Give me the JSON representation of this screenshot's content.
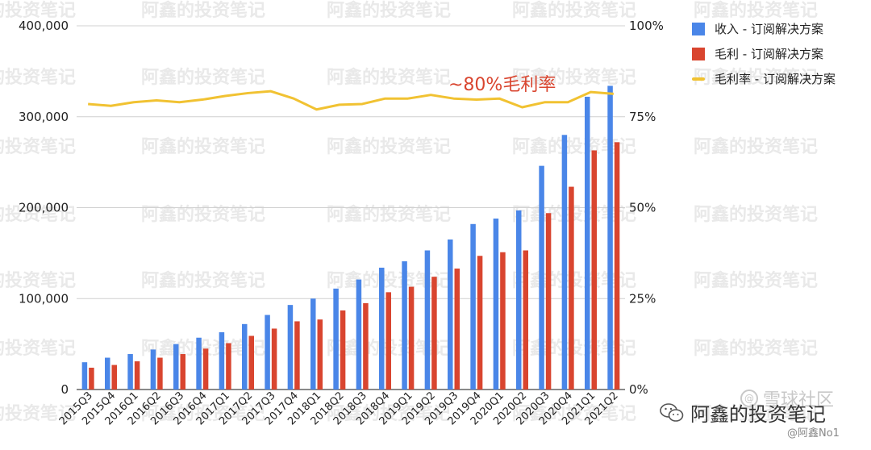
{
  "chart_data": {
    "type": "bar",
    "categories": [
      "2015Q3",
      "2015Q4",
      "2016Q1",
      "2016Q2",
      "2016Q3",
      "2016Q4",
      "2017Q1",
      "2017Q2",
      "2017Q3",
      "2017Q4",
      "2018Q1",
      "2018Q2",
      "2018Q3",
      "2018Q4",
      "2019Q1",
      "2019Q2",
      "2019Q3",
      "2019Q4",
      "2020Q1",
      "2020Q2",
      "2020Q3",
      "2020Q4",
      "2021Q1",
      "2021Q2"
    ],
    "series": [
      {
        "name": "收入 - 订阅解决方案",
        "kind": "bar",
        "axis": "left",
        "color": "#4a86e8",
        "values": [
          30000,
          35000,
          39000,
          44000,
          50000,
          57000,
          63000,
          72000,
          82000,
          93000,
          100000,
          111000,
          121000,
          134000,
          141000,
          153000,
          165000,
          182000,
          188000,
          197000,
          246000,
          280000,
          322000,
          334000
        ]
      },
      {
        "name": "毛利 - 订阅解决方案",
        "kind": "bar",
        "axis": "left",
        "color": "#d9452f",
        "values": [
          24000,
          27000,
          31000,
          35000,
          39000,
          45000,
          51000,
          59000,
          67000,
          75000,
          77000,
          87000,
          95000,
          107000,
          113000,
          124000,
          133000,
          147000,
          151000,
          153000,
          194000,
          223000,
          263000,
          272000
        ]
      },
      {
        "name": "毛利率 - 订阅解决方案",
        "kind": "line",
        "axis": "right",
        "color": "#f1c232",
        "values": [
          0.785,
          0.78,
          0.79,
          0.795,
          0.79,
          0.797,
          0.807,
          0.815,
          0.82,
          0.8,
          0.77,
          0.783,
          0.785,
          0.8,
          0.8,
          0.81,
          0.8,
          0.797,
          0.8,
          0.776,
          0.79,
          0.79,
          0.818,
          0.813
        ]
      }
    ],
    "left_axis": {
      "ylim": [
        0,
        400000
      ],
      "ticks": [
        "0",
        "100,000",
        "200,000",
        "300,000",
        "400,000"
      ]
    },
    "right_axis": {
      "ylim": [
        0,
        1
      ],
      "ticks": [
        "0%",
        "25%",
        "50%",
        "75%",
        "100%"
      ]
    },
    "grid": true,
    "legend_position": "top-right",
    "annotation": "~80%毛利率"
  },
  "watermark": "阿鑫的投资笔记",
  "footer": {
    "account": "阿鑫的投资笔记",
    "site": "雪球社区",
    "handle": "@阿鑫No1",
    "wechat_icon": "wechat-icon"
  }
}
